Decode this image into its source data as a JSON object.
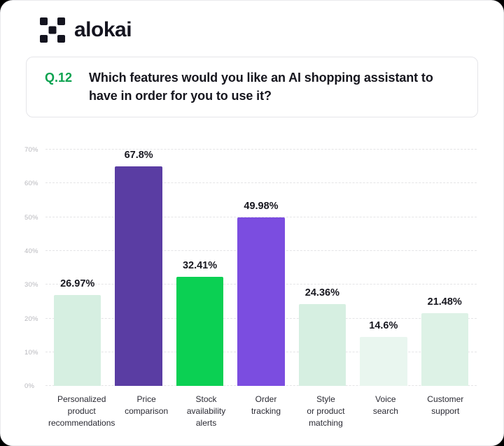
{
  "brand": {
    "wordmark": "alokai",
    "logo_icon": "alokai-pixel-x-icon",
    "logo_color": "#14141f"
  },
  "question": {
    "number": "Q.12",
    "number_color": "#0ba24f",
    "text": "Which features would you like an AI shopping assistant to have in order for you to use it?"
  },
  "chart_data": {
    "type": "bar",
    "title": "Q.12 Which features would you like an AI shopping assistant to have in order for you to use it?",
    "categories": [
      "Personalized\nproduct\nrecommendations",
      "Price\ncomparison",
      "Stock\navailability\nalerts",
      "Order\ntracking",
      "Style\nor product\nmatching",
      "Voice\nsearch",
      "Customer\nsupport"
    ],
    "values": [
      26.97,
      67.8,
      32.41,
      49.98,
      24.36,
      14.6,
      21.48
    ],
    "value_labels": [
      "26.97%",
      "67.8%",
      "32.41%",
      "49.98%",
      "24.36%",
      "14.6%",
      "21.48%"
    ],
    "bar_colors": [
      "#d6efe1",
      "#5a3da3",
      "#0bd053",
      "#7b4de0",
      "#d6efe1",
      "#e9f6ef",
      "#ddf2e6"
    ],
    "xlabel": "",
    "ylabel": "",
    "ylim": [
      0,
      70
    ],
    "ytick_values": [
      70,
      60,
      50,
      40,
      30,
      20,
      10,
      0
    ],
    "ytick_labels": [
      "70%",
      "60%",
      "50%",
      "40%",
      "30%",
      "20%",
      "10%",
      "0%"
    ],
    "grid": "dashed horizontal gridlines",
    "legend": "none"
  }
}
